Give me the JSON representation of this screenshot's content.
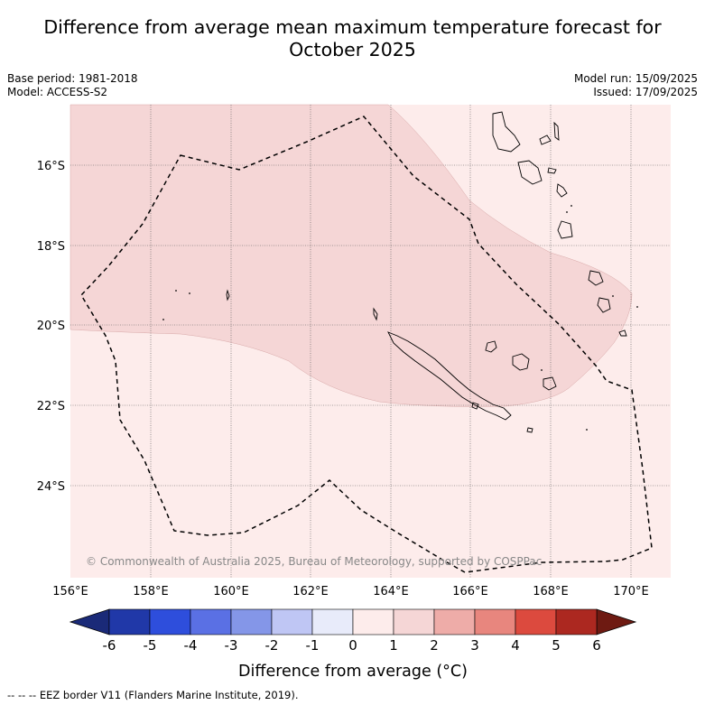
{
  "title_line1": "Difference from average mean maximum temperature forecast for",
  "title_line2": "October 2025",
  "meta_left": [
    "Base period: 1981-2018",
    "Model: ACCESS-S2"
  ],
  "meta_right": [
    "Model run: 15/09/2025",
    "Issued: 17/09/2025"
  ],
  "map": {
    "lat_ticks": [
      "16°S",
      "18°S",
      "20°S",
      "22°S",
      "24°S"
    ],
    "lon_ticks": [
      "156°E",
      "158°E",
      "160°E",
      "162°E",
      "164°E",
      "166°E",
      "168°E",
      "170°E"
    ],
    "copyright": "© Commonwealth of Australia 2025, Bureau of Meteorology, supported by COSPPac",
    "colors": {
      "anomaly_0_1": "#fdeceb",
      "anomaly_1_2": "#f5d6d6"
    }
  },
  "colorbar": {
    "ticks": [
      "-6",
      "-5",
      "-4",
      "-3",
      "-2",
      "-1",
      "0",
      "1",
      "2",
      "3",
      "4",
      "5",
      "6"
    ],
    "colors": [
      "#2038a8",
      "#2e4edc",
      "#5a70e4",
      "#8496e8",
      "#bfc6f4",
      "#e8ebfa",
      "#fdeceb",
      "#f5d6d6",
      "#eeaca8",
      "#e8867e",
      "#dc4a3e",
      "#ac2820"
    ],
    "under_color": "#1a2a78",
    "over_color": "#6e1a12",
    "label": "Difference from average (°C)"
  },
  "footnote": "--  --  -- EEZ border V11 (Flanders Marine Institute, 2019)."
}
